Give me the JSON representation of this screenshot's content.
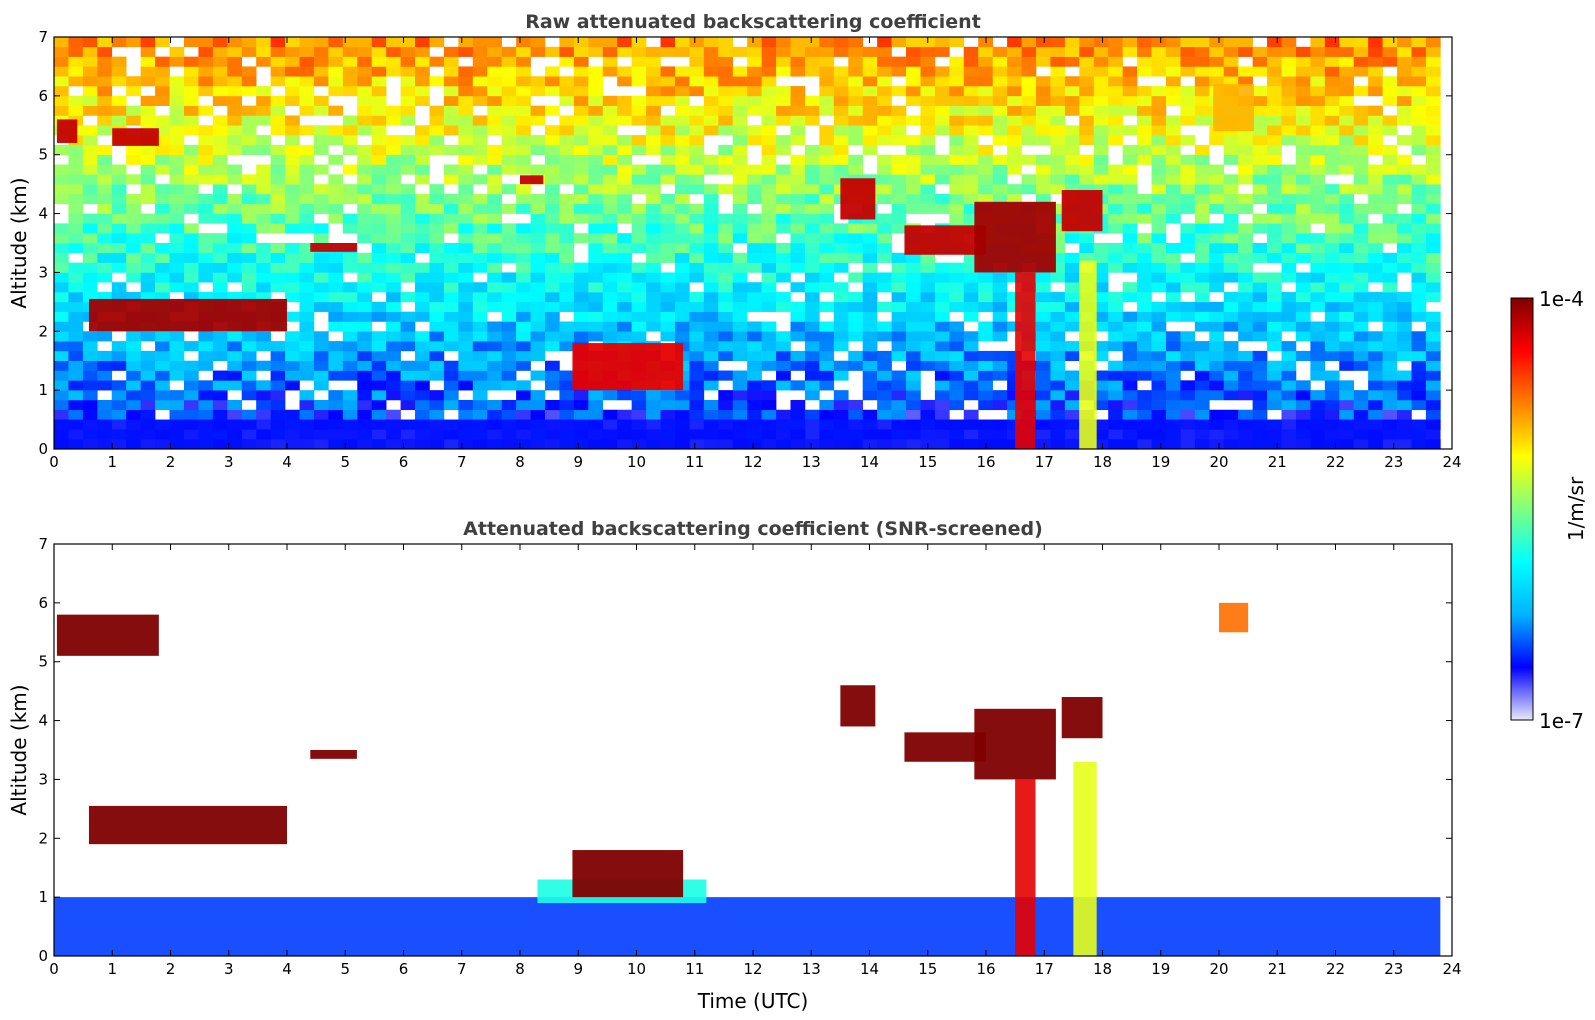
{
  "chart_data": [
    {
      "type": "heatmap",
      "title": "Raw attenuated backscattering coefficient",
      "xlabel": "",
      "ylabel": "Altitude (km)",
      "xlim": [
        0,
        24
      ],
      "ylim": [
        0,
        7
      ],
      "xticks": [
        "0",
        "1",
        "2",
        "3",
        "4",
        "5",
        "6",
        "7",
        "8",
        "9",
        "10",
        "11",
        "12",
        "13",
        "14",
        "15",
        "16",
        "17",
        "18",
        "19",
        "20",
        "21",
        "22",
        "23",
        "24"
      ],
      "yticks": [
        "0",
        "1",
        "2",
        "3",
        "4",
        "5",
        "6",
        "7"
      ],
      "data_end_hour": 23.8,
      "color_scale": "log10",
      "features": [
        {
          "kind": "aerosol_layer",
          "x_range": [
            0,
            23.8
          ],
          "y_range": [
            0,
            0.5
          ],
          "log10_value": -6.6
        },
        {
          "kind": "cloud",
          "x_range": [
            0.05,
            0.4
          ],
          "y_range": [
            5.2,
            5.6
          ],
          "log10_value": -4.2
        },
        {
          "kind": "cloud",
          "x_range": [
            1.0,
            1.8
          ],
          "y_range": [
            5.15,
            5.45
          ],
          "log10_value": -4.2
        },
        {
          "kind": "cloud",
          "x_range": [
            0.6,
            4.0
          ],
          "y_range": [
            2.0,
            2.55
          ],
          "log10_value": -4.1
        },
        {
          "kind": "cloud",
          "x_range": [
            4.4,
            5.2
          ],
          "y_range": [
            3.35,
            3.5
          ],
          "log10_value": -4.2
        },
        {
          "kind": "cloud",
          "x_range": [
            8.0,
            8.4
          ],
          "y_range": [
            4.5,
            4.65
          ],
          "log10_value": -4.2
        },
        {
          "kind": "cloud",
          "x_range": [
            8.9,
            10.8
          ],
          "y_range": [
            1.0,
            1.8
          ],
          "log10_value": -4.3
        },
        {
          "kind": "cloud",
          "x_range": [
            13.5,
            14.1
          ],
          "y_range": [
            3.9,
            4.6
          ],
          "log10_value": -4.2
        },
        {
          "kind": "cloud",
          "x_range": [
            14.6,
            16.0
          ],
          "y_range": [
            3.3,
            3.8
          ],
          "log10_value": -4.2
        },
        {
          "kind": "cloud",
          "x_range": [
            15.8,
            17.2
          ],
          "y_range": [
            3.0,
            4.2
          ],
          "log10_value": -4.1
        },
        {
          "kind": "cloud",
          "x_range": [
            17.3,
            18.0
          ],
          "y_range": [
            3.7,
            4.4
          ],
          "log10_value": -4.2
        },
        {
          "kind": "precipitation",
          "x_range": [
            16.5,
            16.85
          ],
          "y_range": [
            0,
            3.0
          ],
          "log10_value": -4.3
        },
        {
          "kind": "precipitation",
          "x_range": [
            17.6,
            17.9
          ],
          "y_range": [
            0,
            3.2
          ],
          "log10_value": -5.2
        },
        {
          "kind": "aerosol_patch",
          "x_range": [
            19.9,
            20.6
          ],
          "y_range": [
            5.4,
            6.2
          ],
          "log10_value": -4.9
        }
      ]
    },
    {
      "type": "heatmap",
      "title": "Attenuated backscattering coefficient (SNR-screened)",
      "xlabel": "Time (UTC)",
      "ylabel": "Altitude (km)",
      "xlim": [
        0,
        24
      ],
      "ylim": [
        0,
        7
      ],
      "xticks": [
        "0",
        "1",
        "2",
        "3",
        "4",
        "5",
        "6",
        "7",
        "8",
        "9",
        "10",
        "11",
        "12",
        "13",
        "14",
        "15",
        "16",
        "17",
        "18",
        "19",
        "20",
        "21",
        "22",
        "23",
        "24"
      ],
      "yticks": [
        "0",
        "1",
        "2",
        "3",
        "4",
        "5",
        "6",
        "7"
      ],
      "data_end_hour": 23.8,
      "color_scale": "log10",
      "features": [
        {
          "kind": "boundary_layer",
          "x_range": [
            0,
            23.8
          ],
          "y_range": [
            0,
            1.0
          ],
          "log10_value": -6.5
        },
        {
          "kind": "elevated_layer",
          "x_range": [
            8.3,
            11.2
          ],
          "y_range": [
            0.9,
            1.3
          ],
          "log10_value": -5.8
        },
        {
          "kind": "cloud",
          "x_range": [
            0.05,
            1.8
          ],
          "y_range": [
            5.1,
            5.8
          ],
          "log10_value": -4.0
        },
        {
          "kind": "cloud",
          "x_range": [
            0.6,
            4.0
          ],
          "y_range": [
            1.9,
            2.55
          ],
          "log10_value": -4.0
        },
        {
          "kind": "cloud",
          "x_range": [
            4.4,
            5.2
          ],
          "y_range": [
            3.35,
            3.5
          ],
          "log10_value": -4.0
        },
        {
          "kind": "cloud",
          "x_range": [
            8.9,
            10.8
          ],
          "y_range": [
            1.0,
            1.8
          ],
          "log10_value": -4.0
        },
        {
          "kind": "cloud",
          "x_range": [
            13.5,
            14.1
          ],
          "y_range": [
            3.9,
            4.6
          ],
          "log10_value": -4.0
        },
        {
          "kind": "cloud",
          "x_range": [
            14.6,
            16.0
          ],
          "y_range": [
            3.3,
            3.8
          ],
          "log10_value": -4.0
        },
        {
          "kind": "cloud",
          "x_range": [
            15.8,
            17.2
          ],
          "y_range": [
            3.0,
            4.2
          ],
          "log10_value": -4.0
        },
        {
          "kind": "cloud",
          "x_range": [
            17.3,
            18.0
          ],
          "y_range": [
            3.7,
            4.4
          ],
          "log10_value": -4.0
        },
        {
          "kind": "precipitation",
          "x_range": [
            16.5,
            16.85
          ],
          "y_range": [
            0,
            3.0
          ],
          "log10_value": -4.3
        },
        {
          "kind": "precipitation",
          "x_range": [
            17.5,
            17.9
          ],
          "y_range": [
            0,
            3.3
          ],
          "log10_value": -5.2
        },
        {
          "kind": "aerosol_patch",
          "x_range": [
            20.0,
            20.5
          ],
          "y_range": [
            5.5,
            6.0
          ],
          "log10_value": -4.7
        }
      ]
    }
  ],
  "colorbar": {
    "label": "1/m/sr",
    "max_label": "1e-4",
    "min_label": "1e-7",
    "range_log10": [
      -7,
      -4
    ],
    "colormap": "jet",
    "colors": [
      "#e8e8f8",
      "#0000ff",
      "#00b4ff",
      "#00ffff",
      "#80ff80",
      "#ffff00",
      "#ff8000",
      "#ff0000",
      "#800000"
    ]
  }
}
